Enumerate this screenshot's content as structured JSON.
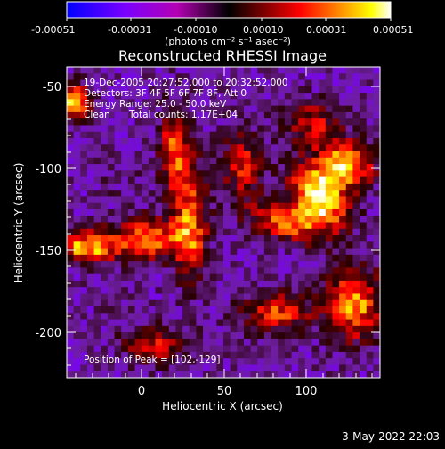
{
  "chart_data": {
    "type": "heatmap",
    "title": "Reconstructed RHESSI Image",
    "xlabel": "Heliocentric X (arcsec)",
    "ylabel": "Heliocentric Y (arcsec)",
    "xlim": [
      -42,
      140
    ],
    "ylim": [
      -230,
      -40
    ],
    "x_ticks": [
      0,
      50,
      100
    ],
    "y_ticks": [
      -50,
      -100,
      -150,
      -200
    ],
    "colorbar": {
      "label": "(photons cm⁻² s⁻¹ asec⁻²)",
      "ticks": [
        "-0.00051",
        "-0.00031",
        "-0.00010",
        "0.00010",
        "0.00031",
        "0.00051"
      ],
      "range": [
        -0.00051,
        0.00051
      ],
      "colors": [
        "#0000ff",
        "#7a00ff",
        "#b400b4",
        "#000000",
        "#8a0000",
        "#ff0000",
        "#ff8a00",
        "#ffff00",
        "#ffffff"
      ]
    },
    "annotations": {
      "time": "19-Dec-2005 20:27:52.000 to 20:32:52.000",
      "detectors": "Detectors: 3F 4F 5F 6F 7F 8F, Att 0",
      "energy": "Energy Range: 25.0 - 50.0 keV",
      "method": "Clean",
      "counts": "Total counts: 1.17E+04",
      "peak": "Position of Peak = [102,-129]"
    },
    "peak": {
      "x": 102,
      "y": -129
    },
    "grid": false,
    "grid_estimate": {
      "nx": 46,
      "ny": 48,
      "note_levels": "values on a -1..1 relative scale of the colorbar range"
    },
    "blobs": [
      {
        "x": 105,
        "y": -120,
        "amp": 0.95,
        "sx": 14,
        "sy": 10,
        "rot": -0.9
      },
      {
        "x": 120,
        "y": -100,
        "amp": 0.75,
        "sx": 12,
        "sy": 10,
        "rot": 0.0
      },
      {
        "x": 85,
        "y": -135,
        "amp": 0.55,
        "sx": 16,
        "sy": 8,
        "rot": -0.3
      },
      {
        "x": -30,
        "y": -150,
        "amp": 0.75,
        "sx": 12,
        "sy": 7,
        "rot": 0.0
      },
      {
        "x": 5,
        "y": -145,
        "amp": 0.6,
        "sx": 14,
        "sy": 9,
        "rot": 0.0
      },
      {
        "x": 30,
        "y": -135,
        "amp": 0.55,
        "sx": 7,
        "sy": 25,
        "rot": 0.0
      },
      {
        "x": 20,
        "y": -90,
        "amp": 0.5,
        "sx": 6,
        "sy": 18,
        "rot": 0.0
      },
      {
        "x": -38,
        "y": -62,
        "amp": 0.85,
        "sx": 6,
        "sy": 8,
        "rot": 0.0
      },
      {
        "x": 125,
        "y": -185,
        "amp": 0.65,
        "sx": 12,
        "sy": 16,
        "rot": 0.0
      },
      {
        "x": 80,
        "y": -190,
        "amp": 0.45,
        "sx": 14,
        "sy": 9,
        "rot": 0.0
      },
      {
        "x": 60,
        "y": -100,
        "amp": 0.35,
        "sx": 9,
        "sy": 14,
        "rot": 0.0
      },
      {
        "x": 10,
        "y": -210,
        "amp": 0.3,
        "sx": 14,
        "sy": 8,
        "rot": 0.0
      },
      {
        "x": 100,
        "y": -75,
        "amp": 0.3,
        "sx": 12,
        "sy": 10,
        "rot": 0.0
      },
      {
        "x": -10,
        "y": -110,
        "amp": -0.25,
        "sx": 12,
        "sy": 12,
        "rot": 0.0
      },
      {
        "x": -15,
        "y": -185,
        "amp": -0.3,
        "sx": 12,
        "sy": 12,
        "rot": 0.0
      },
      {
        "x": 55,
        "y": -60,
        "amp": -0.25,
        "sx": 10,
        "sy": 10,
        "rot": 0.0
      }
    ]
  },
  "footer": {
    "timestamp": "3-May-2022 22:03"
  }
}
